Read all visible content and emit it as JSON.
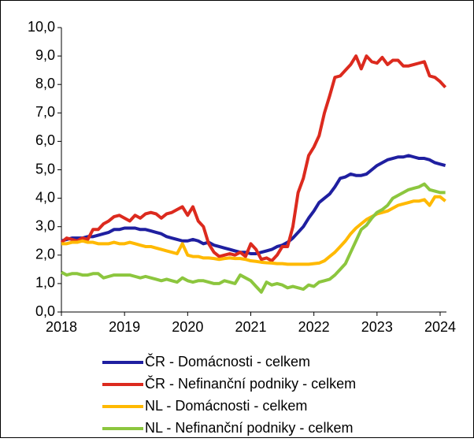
{
  "chart_data": {
    "type": "line",
    "x": [
      2018,
      2018.083,
      2018.167,
      2018.25,
      2018.333,
      2018.417,
      2018.5,
      2018.583,
      2018.667,
      2018.75,
      2018.833,
      2018.917,
      2019,
      2019.083,
      2019.167,
      2019.25,
      2019.333,
      2019.417,
      2019.5,
      2019.583,
      2019.667,
      2019.75,
      2019.833,
      2019.917,
      2020,
      2020.083,
      2020.167,
      2020.25,
      2020.333,
      2020.417,
      2020.5,
      2020.583,
      2020.667,
      2020.75,
      2020.833,
      2020.917,
      2021,
      2021.083,
      2021.167,
      2021.25,
      2021.333,
      2021.417,
      2021.5,
      2021.583,
      2021.667,
      2021.75,
      2021.833,
      2021.917,
      2022,
      2022.083,
      2022.167,
      2022.25,
      2022.333,
      2022.417,
      2022.5,
      2022.583,
      2022.667,
      2022.75,
      2022.833,
      2022.917,
      2023,
      2023.083,
      2023.167,
      2023.25,
      2023.333,
      2023.417,
      2023.5,
      2023.583,
      2023.667,
      2023.75,
      2023.833,
      2023.917,
      2024,
      2024.083
    ],
    "series": [
      {
        "name": "ČR - Domácnosti - celkem",
        "color": "#1f1fa0",
        "values": [
          2.5,
          2.55,
          2.6,
          2.6,
          2.6,
          2.65,
          2.65,
          2.7,
          2.75,
          2.8,
          2.9,
          2.9,
          2.95,
          2.95,
          2.95,
          2.9,
          2.9,
          2.85,
          2.8,
          2.75,
          2.65,
          2.6,
          2.55,
          2.5,
          2.5,
          2.55,
          2.5,
          2.4,
          2.45,
          2.35,
          2.3,
          2.25,
          2.2,
          2.15,
          2.1,
          2.1,
          2.05,
          2.05,
          2.1,
          2.15,
          2.2,
          2.3,
          2.35,
          2.45,
          2.6,
          2.8,
          3.0,
          3.3,
          3.55,
          3.85,
          4.0,
          4.15,
          4.4,
          4.7,
          4.75,
          4.85,
          4.8,
          4.8,
          4.85,
          5.0,
          5.15,
          5.25,
          5.35,
          5.4,
          5.45,
          5.45,
          5.5,
          5.45,
          5.4,
          5.4,
          5.35,
          5.25,
          5.2,
          5.15
        ]
      },
      {
        "name": "ČR - Nefinanční podniky - celkem",
        "color": "#dc2a1e",
        "values": [
          2.45,
          2.6,
          2.55,
          2.5,
          2.6,
          2.55,
          2.9,
          2.9,
          3.1,
          3.2,
          3.35,
          3.4,
          3.3,
          3.2,
          3.4,
          3.3,
          3.45,
          3.5,
          3.45,
          3.3,
          3.45,
          3.5,
          3.6,
          3.7,
          3.4,
          3.7,
          3.2,
          3.0,
          2.4,
          2.1,
          1.95,
          2.0,
          2.05,
          2.0,
          2.1,
          1.95,
          2.4,
          2.2,
          1.85,
          1.9,
          1.8,
          2.0,
          2.3,
          2.3,
          3.0,
          4.2,
          4.7,
          5.5,
          5.8,
          6.2,
          7.0,
          7.6,
          8.25,
          8.3,
          8.5,
          8.7,
          9.0,
          8.55,
          9.0,
          8.8,
          8.75,
          8.95,
          8.7,
          8.85,
          8.85,
          8.65,
          8.65,
          8.7,
          8.75,
          8.8,
          8.3,
          8.25,
          8.1,
          7.9
        ]
      },
      {
        "name": "NL - Domácnosti - celkem",
        "color": "#ffb900",
        "values": [
          2.4,
          2.4,
          2.45,
          2.45,
          2.5,
          2.45,
          2.45,
          2.4,
          2.4,
          2.4,
          2.45,
          2.4,
          2.4,
          2.45,
          2.4,
          2.35,
          2.3,
          2.3,
          2.25,
          2.2,
          2.15,
          2.1,
          2.05,
          2.4,
          2.0,
          1.95,
          1.95,
          1.9,
          1.9,
          1.88,
          1.85,
          1.88,
          1.9,
          1.88,
          1.88,
          1.85,
          1.8,
          1.78,
          1.75,
          1.73,
          1.72,
          1.7,
          1.7,
          1.68,
          1.68,
          1.68,
          1.68,
          1.68,
          1.7,
          1.72,
          1.8,
          1.95,
          2.1,
          2.3,
          2.5,
          2.75,
          2.95,
          3.1,
          3.25,
          3.35,
          3.45,
          3.5,
          3.55,
          3.65,
          3.75,
          3.8,
          3.85,
          3.9,
          3.9,
          3.95,
          3.75,
          4.05,
          4.05,
          3.9
        ]
      },
      {
        "name": "NL - Nefinanční podniky - celkem",
        "color": "#8cc63e",
        "values": [
          1.4,
          1.3,
          1.35,
          1.35,
          1.3,
          1.3,
          1.35,
          1.35,
          1.2,
          1.25,
          1.3,
          1.3,
          1.3,
          1.3,
          1.25,
          1.2,
          1.25,
          1.2,
          1.15,
          1.1,
          1.15,
          1.1,
          1.05,
          1.2,
          1.1,
          1.05,
          1.1,
          1.1,
          1.05,
          1.0,
          1.0,
          1.1,
          1.05,
          1.0,
          1.3,
          1.2,
          1.1,
          0.9,
          0.7,
          1.05,
          0.95,
          1.0,
          0.95,
          0.85,
          0.9,
          0.85,
          0.8,
          0.95,
          0.9,
          1.05,
          1.1,
          1.15,
          1.3,
          1.5,
          1.7,
          2.1,
          2.5,
          2.9,
          3.05,
          3.3,
          3.5,
          3.6,
          3.75,
          4.0,
          4.1,
          4.2,
          4.3,
          4.35,
          4.4,
          4.5,
          4.3,
          4.25,
          4.2,
          4.2
        ]
      }
    ],
    "xlim": [
      2018,
      2024.1
    ],
    "xticks": [
      2018,
      2019,
      2020,
      2021,
      2022,
      2023,
      2024
    ],
    "ylim": [
      0,
      10
    ],
    "yticks": [
      {
        "value": 0,
        "label": "0,0"
      },
      {
        "value": 1,
        "label": "1,0"
      },
      {
        "value": 2,
        "label": "2,0"
      },
      {
        "value": 3,
        "label": "3,0"
      },
      {
        "value": 4,
        "label": "4,0"
      },
      {
        "value": 5,
        "label": "5,0"
      },
      {
        "value": 6,
        "label": "6,0"
      },
      {
        "value": 7,
        "label": "7,0"
      },
      {
        "value": 8,
        "label": "8,0"
      },
      {
        "value": 9,
        "label": "9,0"
      },
      {
        "value": 10,
        "label": "10,0"
      }
    ],
    "grid": false,
    "legend": "bottom"
  }
}
